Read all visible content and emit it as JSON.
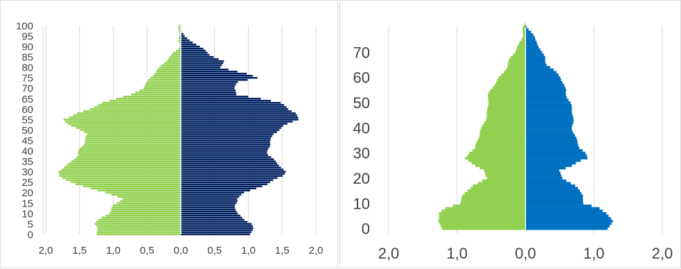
{
  "chart_data": [
    {
      "type": "bar",
      "orientation": "horizontal",
      "subtype": "population-pyramid",
      "title": "",
      "xlabel": "",
      "ylabel": "",
      "x_tick_labels": [
        "2,0",
        "1,5",
        "1,0",
        "0,5",
        "0,0",
        "0,5",
        "1,0",
        "1,5",
        "2,0"
      ],
      "y_tick_labels": [
        "0",
        "5",
        "10",
        "15",
        "20",
        "25",
        "30",
        "35",
        "40",
        "45",
        "50",
        "55",
        "60",
        "65",
        "70",
        "75",
        "80",
        "85",
        "90",
        "95",
        "100"
      ],
      "xlim": [
        -2.0,
        2.0
      ],
      "ylim": [
        0,
        100
      ],
      "grid": "vertical",
      "legend": "none",
      "colors": {
        "left": "#92d050",
        "right": "#002060",
        "grid": "#d9d9d9",
        "text": "#404040",
        "axis": "#d9d9d9"
      },
      "age_points": [
        0,
        5,
        10,
        14,
        17,
        20,
        24,
        28,
        30,
        33,
        38,
        44,
        48,
        52,
        55,
        58,
        60,
        63,
        65,
        67,
        70,
        73,
        75,
        77,
        80,
        83,
        86,
        90,
        95,
        100
      ],
      "series": [
        {
          "values": [
            1.25,
            1.28,
            1.05,
            1.0,
            0.9,
            1.1,
            1.55,
            1.8,
            1.85,
            1.7,
            1.5,
            1.45,
            1.4,
            1.6,
            1.72,
            1.55,
            1.35,
            1.2,
            0.95,
            0.7,
            0.55,
            0.5,
            0.48,
            0.42,
            0.3,
            0.2,
            0.12,
            0.05,
            0.02,
            0.0
          ]
        },
        {
          "values": [
            1.02,
            1.05,
            0.85,
            0.8,
            0.8,
            0.95,
            1.3,
            1.5,
            1.52,
            1.45,
            1.32,
            1.3,
            1.35,
            1.55,
            1.75,
            1.7,
            1.58,
            1.45,
            1.2,
            0.85,
            0.8,
            0.85,
            1.1,
            0.95,
            0.6,
            0.65,
            0.45,
            0.25,
            0.05,
            0.0
          ]
        }
      ]
    },
    {
      "type": "bar",
      "orientation": "horizontal",
      "subtype": "population-pyramid",
      "title": "",
      "xlabel": "",
      "ylabel": "",
      "x_tick_labels": [
        "2,0",
        "1,0",
        "0,0",
        "1,0",
        "2,0"
      ],
      "y_tick_labels": [
        "0",
        "10",
        "20",
        "30",
        "40",
        "50",
        "60",
        "70"
      ],
      "xlim": [
        -2.0,
        2.0
      ],
      "ylim": [
        -2,
        80
      ],
      "grid": "vertical",
      "legend": "none",
      "colors": {
        "left": "#92d050",
        "right": "#0070c0",
        "grid": "#d9d9d9",
        "text": "#595959"
      },
      "age_points": [
        0,
        3,
        6,
        8,
        10,
        13,
        17,
        20,
        23,
        25,
        27,
        28,
        30,
        32,
        35,
        40,
        45,
        50,
        55,
        60,
        65,
        68,
        70,
        73,
        75,
        78,
        80,
        81
      ],
      "series": [
        {
          "values": [
            1.22,
            1.3,
            1.25,
            1.15,
            0.95,
            0.92,
            0.8,
            0.55,
            0.6,
            0.72,
            0.82,
            0.88,
            0.85,
            0.75,
            0.7,
            0.62,
            0.58,
            0.55,
            0.5,
            0.4,
            0.25,
            0.2,
            0.15,
            0.1,
            0.08,
            0.05,
            0.02,
            0.0
          ]
        },
        {
          "values": [
            1.2,
            1.25,
            1.2,
            1.1,
            0.85,
            0.85,
            0.7,
            0.55,
            0.5,
            0.7,
            0.82,
            0.9,
            0.85,
            0.78,
            0.75,
            0.7,
            0.68,
            0.65,
            0.6,
            0.5,
            0.32,
            0.3,
            0.25,
            0.18,
            0.12,
            0.08,
            0.03,
            0.0
          ]
        }
      ]
    }
  ]
}
